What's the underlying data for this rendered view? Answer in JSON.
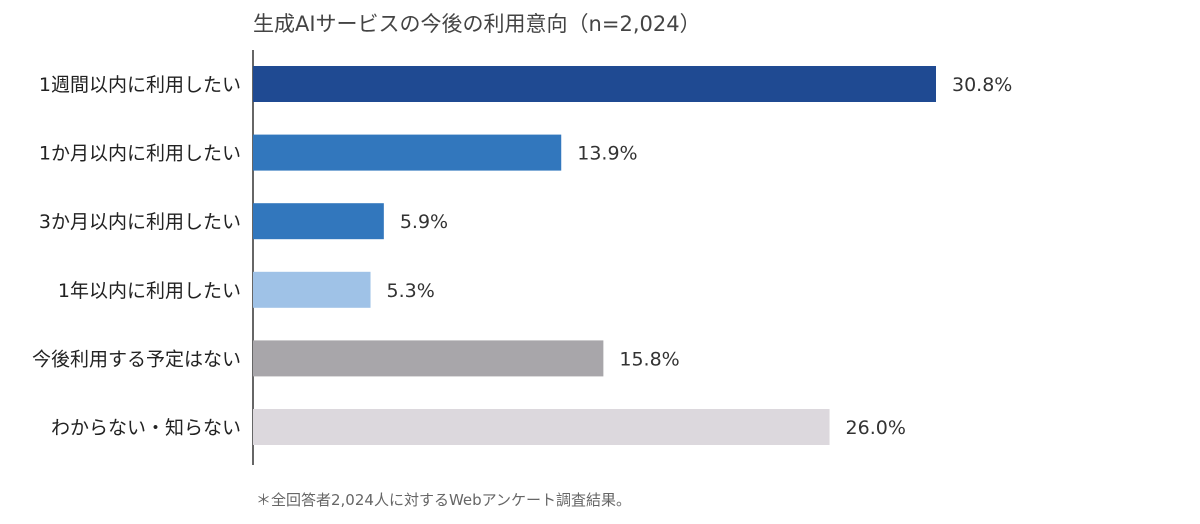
{
  "chart_data": {
    "type": "bar",
    "orientation": "horizontal",
    "title": "生成AIサービスの今後の利用意向（n=2,024）",
    "categories": [
      "1週間以内に利用したい",
      "1か月以内に利用したい",
      "3か月以内に利用したい",
      "1年以内に利用したい",
      "今後利用する予定はない",
      "わからない・知らない"
    ],
    "values": [
      30.8,
      13.9,
      5.9,
      5.3,
      15.8,
      26.0
    ],
    "value_labels": [
      "30.8%",
      "13.9%",
      "5.9%",
      "5.3%",
      "15.8%",
      "26.0%"
    ],
    "colors": [
      "#1f4a92",
      "#3277bd",
      "#3277bd",
      "#9fc2e7",
      "#a8a6aa",
      "#dcd8dd"
    ],
    "unit": "%",
    "xlim": [
      0,
      40
    ],
    "grid": false,
    "legend": "none"
  },
  "footnote": "＊全回答者2,024人に対するWebアンケート調査結果。"
}
